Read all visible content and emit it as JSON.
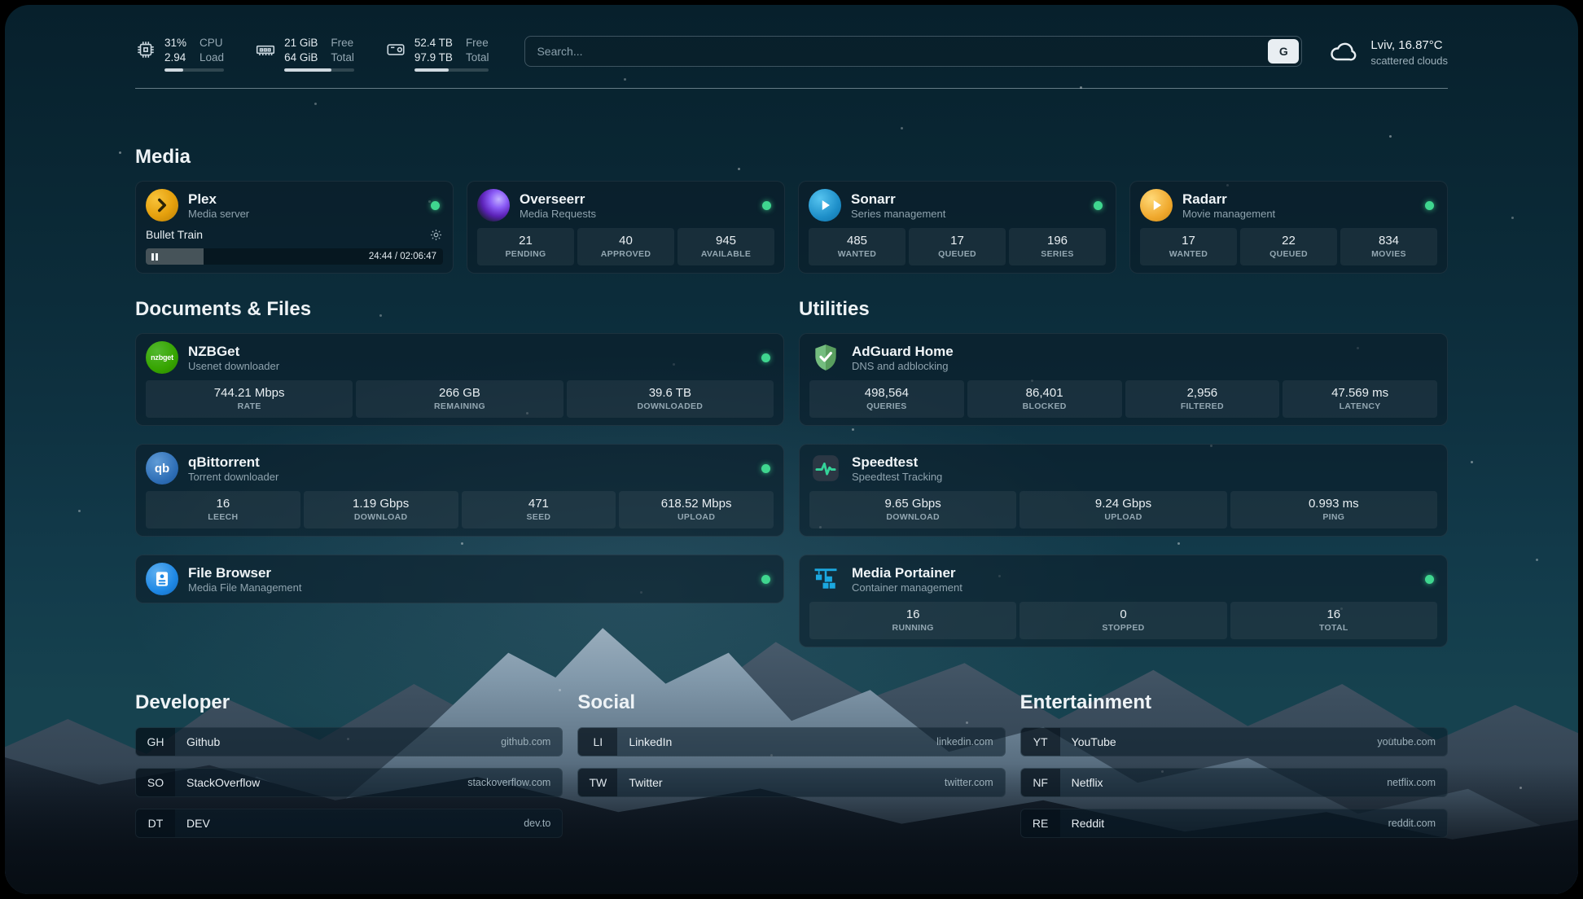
{
  "topbar": {
    "cpu": {
      "value1": "31%",
      "label1": "CPU",
      "value2": "2.94",
      "label2": "Load",
      "bar_pct": 31
    },
    "memory": {
      "value1": "21 GiB",
      "label1": "Free",
      "value2": "64 GiB",
      "label2": "Total",
      "bar_pct": 67
    },
    "disk": {
      "value1": "52.4 TB",
      "label1": "Free",
      "value2": "97.9 TB",
      "label2": "Total",
      "bar_pct": 46
    },
    "search": {
      "placeholder": "Search...",
      "button": "G"
    },
    "weather": {
      "location": "Lviv, 16.87°C",
      "condition": "scattered clouds"
    }
  },
  "media": {
    "title": "Media",
    "plex": {
      "name": "Plex",
      "desc": "Media server",
      "now_playing": "Bullet Train",
      "time": "24:44 / 02:06:47",
      "progress_pct": 19.5
    },
    "overseerr": {
      "name": "Overseerr",
      "desc": "Media Requests",
      "stats": [
        {
          "value": "21",
          "label": "PENDING"
        },
        {
          "value": "40",
          "label": "APPROVED"
        },
        {
          "value": "945",
          "label": "AVAILABLE"
        }
      ]
    },
    "sonarr": {
      "name": "Sonarr",
      "desc": "Series management",
      "stats": [
        {
          "value": "485",
          "label": "WANTED"
        },
        {
          "value": "17",
          "label": "QUEUED"
        },
        {
          "value": "196",
          "label": "SERIES"
        }
      ]
    },
    "radarr": {
      "name": "Radarr",
      "desc": "Movie management",
      "stats": [
        {
          "value": "17",
          "label": "WANTED"
        },
        {
          "value": "22",
          "label": "QUEUED"
        },
        {
          "value": "834",
          "label": "MOVIES"
        }
      ]
    }
  },
  "documents": {
    "title": "Documents & Files",
    "nzbget": {
      "name": "NZBGet",
      "desc": "Usenet downloader",
      "stats": [
        {
          "value": "744.21 Mbps",
          "label": "RATE"
        },
        {
          "value": "266 GB",
          "label": "REMAINING"
        },
        {
          "value": "39.6 TB",
          "label": "DOWNLOADED"
        }
      ]
    },
    "qbittorrent": {
      "name": "qBittorrent",
      "desc": "Torrent downloader",
      "stats": [
        {
          "value": "16",
          "label": "LEECH"
        },
        {
          "value": "1.19 Gbps",
          "label": "DOWNLOAD"
        },
        {
          "value": "471",
          "label": "SEED"
        },
        {
          "value": "618.52 Mbps",
          "label": "UPLOAD"
        }
      ]
    },
    "filebrowser": {
      "name": "File Browser",
      "desc": "Media File Management"
    }
  },
  "utilities": {
    "title": "Utilities",
    "adguard": {
      "name": "AdGuard Home",
      "desc": "DNS and adblocking",
      "stats": [
        {
          "value": "498,564",
          "label": "QUERIES"
        },
        {
          "value": "86,401",
          "label": "BLOCKED"
        },
        {
          "value": "2,956",
          "label": "FILTERED"
        },
        {
          "value": "47.569 ms",
          "label": "LATENCY"
        }
      ]
    },
    "speedtest": {
      "name": "Speedtest",
      "desc": "Speedtest Tracking",
      "stats": [
        {
          "value": "9.65 Gbps",
          "label": "DOWNLOAD"
        },
        {
          "value": "9.24 Gbps",
          "label": "UPLOAD"
        },
        {
          "value": "0.993 ms",
          "label": "PING"
        }
      ]
    },
    "portainer": {
      "name": "Media Portainer",
      "desc": "Container management",
      "stats": [
        {
          "value": "16",
          "label": "RUNNING"
        },
        {
          "value": "0",
          "label": "STOPPED"
        },
        {
          "value": "16",
          "label": "TOTAL"
        }
      ]
    }
  },
  "bookmarks": {
    "developer": {
      "title": "Developer",
      "items": [
        {
          "abbr": "GH",
          "name": "Github",
          "url": "github.com"
        },
        {
          "abbr": "SO",
          "name": "StackOverflow",
          "url": "stackoverflow.com"
        },
        {
          "abbr": "DT",
          "name": "DEV",
          "url": "dev.to"
        }
      ]
    },
    "social": {
      "title": "Social",
      "items": [
        {
          "abbr": "LI",
          "name": "LinkedIn",
          "url": "linkedin.com"
        },
        {
          "abbr": "TW",
          "name": "Twitter",
          "url": "twitter.com"
        }
      ]
    },
    "entertainment": {
      "title": "Entertainment",
      "items": [
        {
          "abbr": "YT",
          "name": "YouTube",
          "url": "youtube.com"
        },
        {
          "abbr": "NF",
          "name": "Netflix",
          "url": "netflix.com"
        },
        {
          "abbr": "RE",
          "name": "Reddit",
          "url": "reddit.com"
        }
      ]
    }
  },
  "icons": {
    "nzbget_text": "nzbget",
    "qbittorrent_text": "qb"
  },
  "colors": {
    "status_green": "#3fd68f",
    "plex_amber": "#e5a00d",
    "overseerr_purple": "#7c3aed",
    "sonarr_blue": "#2193d1",
    "radarr_amber": "#f0a92e",
    "nzbget_green": "#36a400",
    "qbittorrent_blue": "#2d6db5",
    "filebrowser_blue": "#1e88e5",
    "adguard_green": "#67b279",
    "speedtest_green": "#34d399",
    "portainer_blue": "#1ba8e0"
  }
}
